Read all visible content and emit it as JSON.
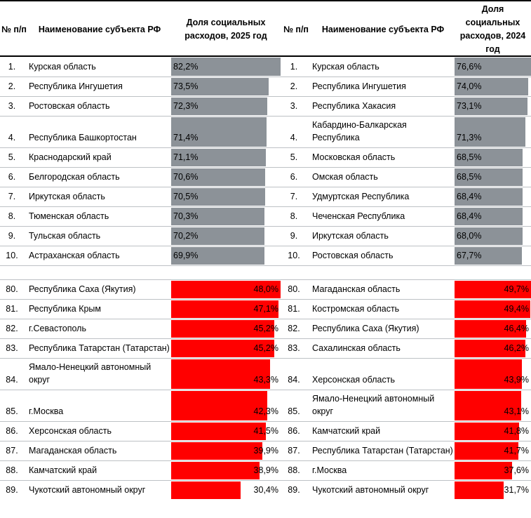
{
  "columns": {
    "num": "№ п/п",
    "name": "Наименование субъекта РФ",
    "value_left": "Доля социальных расходов, 2025 год",
    "value_right": "Доля социальных расходов, 2024 год"
  },
  "colors": {
    "gray_bar": "#8C9298",
    "red_bar": "#FF0000",
    "grid_line": "#BDC1C5",
    "header_border": "#000000",
    "text": "#000000"
  },
  "sections": [
    {
      "name": "top",
      "bar_style": "gray",
      "value_align": "left",
      "rows": [
        {
          "left": {
            "num": "1.",
            "name": "Курская область",
            "value": "82,2%",
            "pct": 82.2
          },
          "right": {
            "num": "1.",
            "name": "Курская область",
            "value": "76,6%",
            "pct": 76.6
          }
        },
        {
          "left": {
            "num": "2.",
            "name": "Республика Ингушетия",
            "value": "73,5%",
            "pct": 73.5
          },
          "right": {
            "num": "2.",
            "name": "Республика Ингушетия",
            "value": "74,0%",
            "pct": 74.0
          }
        },
        {
          "left": {
            "num": "3.",
            "name": "Ростовская область",
            "value": "72,3%",
            "pct": 72.3
          },
          "right": {
            "num": "3.",
            "name": "Республика Хакасия",
            "value": "73,1%",
            "pct": 73.1
          }
        },
        {
          "left": {
            "num": "4.",
            "name": "Республика Башкортостан",
            "value": "71,4%",
            "pct": 71.4
          },
          "right": {
            "num": "4.",
            "name": "Кабардино-Балкарская Республика",
            "value": "71,3%",
            "pct": 71.3
          }
        },
        {
          "left": {
            "num": "5.",
            "name": "Краснодарский край",
            "value": "71,1%",
            "pct": 71.1
          },
          "right": {
            "num": "5.",
            "name": "Московская область",
            "value": "68,5%",
            "pct": 68.5
          }
        },
        {
          "left": {
            "num": "6.",
            "name": "Белгородская область",
            "value": "70,6%",
            "pct": 70.6
          },
          "right": {
            "num": "6.",
            "name": "Омская область",
            "value": "68,5%",
            "pct": 68.5
          }
        },
        {
          "left": {
            "num": "7.",
            "name": "Иркутская область",
            "value": "70,5%",
            "pct": 70.5
          },
          "right": {
            "num": "7.",
            "name": "Удмуртская Республика",
            "value": "68,4%",
            "pct": 68.4
          }
        },
        {
          "left": {
            "num": "8.",
            "name": "Тюменская область",
            "value": "70,3%",
            "pct": 70.3
          },
          "right": {
            "num": "8.",
            "name": "Чеченская Республика",
            "value": "68,4%",
            "pct": 68.4
          }
        },
        {
          "left": {
            "num": "9.",
            "name": "Тульская область",
            "value": "70,2%",
            "pct": 70.2
          },
          "right": {
            "num": "9.",
            "name": "Иркутская область",
            "value": "68,0%",
            "pct": 68.0
          }
        },
        {
          "left": {
            "num": "10.",
            "name": "Астраханская область",
            "value": "69,9%",
            "pct": 69.9
          },
          "right": {
            "num": "10.",
            "name": "Ростовская область",
            "value": "67,7%",
            "pct": 67.7
          }
        }
      ]
    },
    {
      "name": "bottom",
      "bar_style": "red",
      "value_align": "right",
      "rows": [
        {
          "left": {
            "num": "80.",
            "name": "Республика Саха (Якутия)",
            "value": "48,0%",
            "pct": 48.0
          },
          "right": {
            "num": "80.",
            "name": "Магаданская область",
            "value": "49,7%",
            "pct": 49.7
          }
        },
        {
          "left": {
            "num": "81.",
            "name": "Республика Крым",
            "value": "47,1%",
            "pct": 47.1
          },
          "right": {
            "num": "81.",
            "name": "Костромская область",
            "value": "49,4%",
            "pct": 49.4
          }
        },
        {
          "left": {
            "num": "82.",
            "name": "г.Севастополь",
            "value": "45,2%",
            "pct": 45.2
          },
          "right": {
            "num": "82.",
            "name": "Республика Саха (Якутия)",
            "value": "46,4%",
            "pct": 46.4
          }
        },
        {
          "left": {
            "num": "83.",
            "name": "Республика Татарстан (Татарстан)",
            "value": "45,2%",
            "pct": 45.2
          },
          "right": {
            "num": "83.",
            "name": "Сахалинская область",
            "value": "46,2%",
            "pct": 46.2
          }
        },
        {
          "left": {
            "num": "84.",
            "name": "Ямало-Ненецкий автономный округ",
            "value": "43,3%",
            "pct": 43.3
          },
          "right": {
            "num": "84.",
            "name": "Херсонская область",
            "value": "43,9%",
            "pct": 43.9
          }
        },
        {
          "left": {
            "num": "85.",
            "name": "г.Москва",
            "value": "42,3%",
            "pct": 42.3
          },
          "right": {
            "num": "85.",
            "name": "Ямало-Ненецкий автономный округ",
            "value": "43,1%",
            "pct": 43.1
          }
        },
        {
          "left": {
            "num": "86.",
            "name": "Херсонская область",
            "value": "41,5%",
            "pct": 41.5
          },
          "right": {
            "num": "86.",
            "name": "Камчатский край",
            "value": "41,8%",
            "pct": 41.8
          }
        },
        {
          "left": {
            "num": "87.",
            "name": "Магаданская область",
            "value": "39,9%",
            "pct": 39.9
          },
          "right": {
            "num": "87.",
            "name": "Республика Татарстан (Татарстан)",
            "value": "41,7%",
            "pct": 41.7
          }
        },
        {
          "left": {
            "num": "88.",
            "name": "Камчатский край",
            "value": "38,9%",
            "pct": 38.9
          },
          "right": {
            "num": "88.",
            "name": "г.Москва",
            "value": "37,6%",
            "pct": 37.6
          }
        },
        {
          "left": {
            "num": "89.",
            "name": "Чукотский автономный округ",
            "value": "30,4%",
            "pct": 30.4
          },
          "right": {
            "num": "89.",
            "name": "Чукотский автономный округ",
            "value": "31,7%",
            "pct": 31.7
          }
        }
      ]
    }
  ],
  "chart_data": [
    {
      "type": "bar",
      "orientation": "horizontal",
      "title": "Доля социальных расходов, 2025 год",
      "categories": [
        "1. Курская область",
        "2. Республика Ингушетия",
        "3. Ростовская область",
        "4. Республика Башкортостан",
        "5. Краснодарский край",
        "6. Белгородская область",
        "7. Иркутская область",
        "8. Тюменская область",
        "9. Тульская область",
        "10. Астраханская область",
        "80. Республика Саха (Якутия)",
        "81. Республика Крым",
        "82. г.Севастополь",
        "83. Республика Татарстан (Татарстан)",
        "84. Ямало-Ненецкий автономный округ",
        "85. г.Москва",
        "86. Херсонская область",
        "87. Магаданская область",
        "88. Камчатский край",
        "89. Чукотский автономный округ"
      ],
      "values": [
        82.2,
        73.5,
        72.3,
        71.4,
        71.1,
        70.6,
        70.5,
        70.3,
        70.2,
        69.9,
        48.0,
        47.1,
        45.2,
        45.2,
        43.3,
        42.3,
        41.5,
        39.9,
        38.9,
        30.4
      ],
      "bar_colors": [
        "gray×10 (ranks 1-10)",
        "red×10 (ranks 80-89)"
      ],
      "note": "ranks 11-79 not shown; bars scaled to section max"
    },
    {
      "type": "bar",
      "orientation": "horizontal",
      "title": "Доля социальных расходов, 2024 год",
      "categories": [
        "1. Курская область",
        "2. Республика Ингушетия",
        "3. Республика Хакасия",
        "4. Кабардино-Балкарская Республика",
        "5. Московская область",
        "6. Омская область",
        "7. Удмуртская Республика",
        "8. Чеченская Республика",
        "9. Иркутская область",
        "10. Ростовская область",
        "80. Магаданская область",
        "81. Костромская область",
        "82. Республика Саха (Якутия)",
        "83. Сахалинская область",
        "84. Херсонская область",
        "85. Ямало-Ненецкий автономный округ",
        "86. Камчатский край",
        "87. Республика Татарстан (Татарстан)",
        "88. г.Москва",
        "89. Чукотский автономный округ"
      ],
      "values": [
        76.6,
        74.0,
        73.1,
        71.3,
        68.5,
        68.5,
        68.4,
        68.4,
        68.0,
        67.7,
        49.7,
        49.4,
        46.4,
        46.2,
        43.9,
        43.1,
        41.8,
        41.7,
        37.6,
        31.7
      ],
      "bar_colors": [
        "gray×10 (ranks 1-10)",
        "red×10 (ranks 80-89)"
      ],
      "note": "ranks 11-79 not shown; bars scaled to section max"
    }
  ]
}
